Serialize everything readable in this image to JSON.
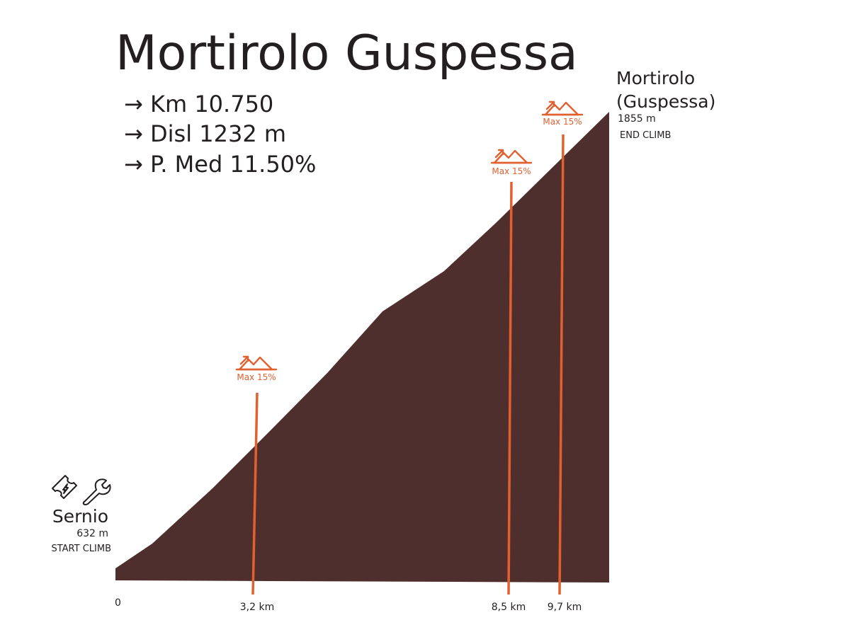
{
  "title": "Mortirolo Guspessa",
  "stats": [
    "→ Km 10.750",
    "→ Disl 1232 m",
    "→ P. Med 11.50%"
  ],
  "start": {
    "name": "Sernio",
    "elevation": "632 m",
    "label": "START CLIMB"
  },
  "end": {
    "name": [
      "Mortirolo",
      "(Guspessa)"
    ],
    "elevation": "1855 m",
    "label": "END CLIMB"
  },
  "axis_start": "0",
  "markers": [
    {
      "label": "Max 15%",
      "distance": "3,2 km"
    },
    {
      "label": "Max 15%",
      "distance": "8,5 km"
    },
    {
      "label": "Max 15%",
      "distance": "9,7 km"
    }
  ]
}
